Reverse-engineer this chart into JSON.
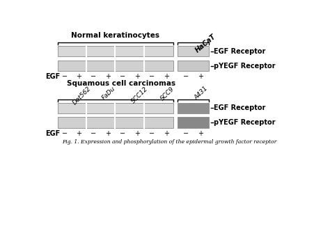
{
  "title": "Fig. 1. Expression and phosphorylation of the epidermal growth factor receptor",
  "top_section_title": "Normal keratinocytes",
  "top_right_label": "HaCaT",
  "bottom_section_title": "Squamous cell carcinomas",
  "top_band1_label": "EGF Receptor",
  "top_band2_label": "pYEGF Receptor",
  "bottom_band1_label": "EGF Receptor",
  "bottom_band2_label": "pYEGF Receptor",
  "egf_label": "EGF",
  "top_egf_signs": [
    "−",
    "+",
    "−",
    "+",
    "−",
    "+",
    "−",
    "+",
    "−",
    "+"
  ],
  "bottom_egf_signs": [
    "−",
    "+",
    "−",
    "+",
    "−",
    "+",
    "−",
    "+",
    "−",
    "+"
  ],
  "bottom_cell_labels": [
    "Det562",
    "FaDu",
    "SCC12",
    "SCC9",
    "A431"
  ],
  "bg_color": "#f5f5f5",
  "strip_bg": "#d8d8d8",
  "strip_bg_hacat": "#d0d0d0",
  "strip_bg_a431_egfr": "#a8a8a8",
  "strip_bg_a431_pygfr": "#989898"
}
